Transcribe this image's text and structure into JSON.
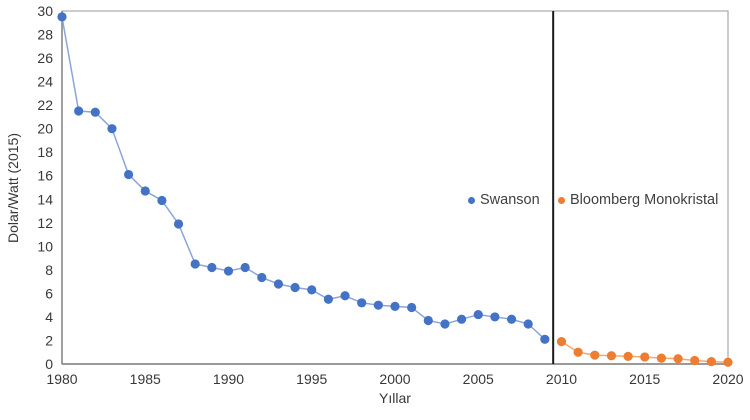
{
  "chart_data": {
    "type": "line",
    "title": "",
    "xlabel": "Yıllar",
    "ylabel": "Dolar/Watt (2015)",
    "xlim": [
      1980,
      2020
    ],
    "ylim": [
      0,
      30
    ],
    "x_ticks": [
      1980,
      1985,
      1990,
      1995,
      2000,
      2005,
      2010,
      2015,
      2020
    ],
    "y_ticks": [
      0,
      2,
      4,
      6,
      8,
      10,
      12,
      14,
      16,
      18,
      20,
      22,
      24,
      26,
      28,
      30
    ],
    "grid": false,
    "legend_position": "inside-middle-right",
    "divider_line_x": 2009.5,
    "divider_line_color": "#1a1a1a",
    "axis_line_color": "#7f7f7f",
    "border_color": "#ababab",
    "tick_label_color": "#383838",
    "series": [
      {
        "name": "Swanson",
        "marker_color": "#4472C4",
        "line_color": "#8AA5DC",
        "x": [
          1980,
          1981,
          1982,
          1983,
          1984,
          1985,
          1986,
          1987,
          1988,
          1989,
          1990,
          1991,
          1992,
          1993,
          1994,
          1995,
          1996,
          1997,
          1998,
          1999,
          2000,
          2001,
          2002,
          2003,
          2004,
          2005,
          2006,
          2007,
          2008,
          2009
        ],
        "y": [
          29.5,
          21.5,
          21.4,
          20.0,
          16.1,
          14.7,
          13.9,
          11.9,
          8.5,
          8.2,
          7.9,
          8.2,
          7.35,
          6.8,
          6.5,
          6.3,
          5.5,
          5.8,
          5.2,
          5.0,
          4.9,
          4.8,
          3.7,
          3.4,
          3.8,
          4.2,
          4.0,
          3.8,
          3.4,
          2.1
        ]
      },
      {
        "name": "Bloomberg Monokristal",
        "marker_color": "#ED7D31",
        "line_color": "#F2A96E",
        "x": [
          2010,
          2011,
          2012,
          2013,
          2014,
          2015,
          2016,
          2017,
          2018,
          2019,
          2020
        ],
        "y": [
          1.9,
          1.0,
          0.75,
          0.7,
          0.65,
          0.6,
          0.5,
          0.45,
          0.3,
          0.2,
          0.15
        ]
      }
    ]
  }
}
